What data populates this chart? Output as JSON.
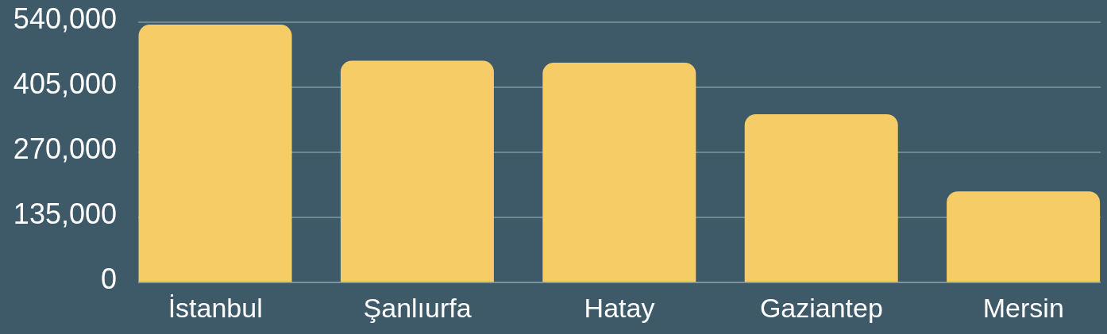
{
  "chart_data": {
    "type": "bar",
    "categories": [
      "İstanbul",
      "Şanlıurfa",
      "Hatay",
      "Gaziantep",
      "Mersin"
    ],
    "values": [
      535000,
      460000,
      456000,
      349000,
      189000
    ],
    "color": "#f6cc67",
    "ylim": [
      0,
      540000
    ],
    "yticks": [
      {
        "value": 0,
        "label": "0"
      },
      {
        "value": 135000,
        "label": "135,000"
      },
      {
        "value": 270000,
        "label": "270,000"
      },
      {
        "value": 405000,
        "label": "405,000"
      },
      {
        "value": 540000,
        "label": "540,000"
      }
    ],
    "grid": "y"
  }
}
